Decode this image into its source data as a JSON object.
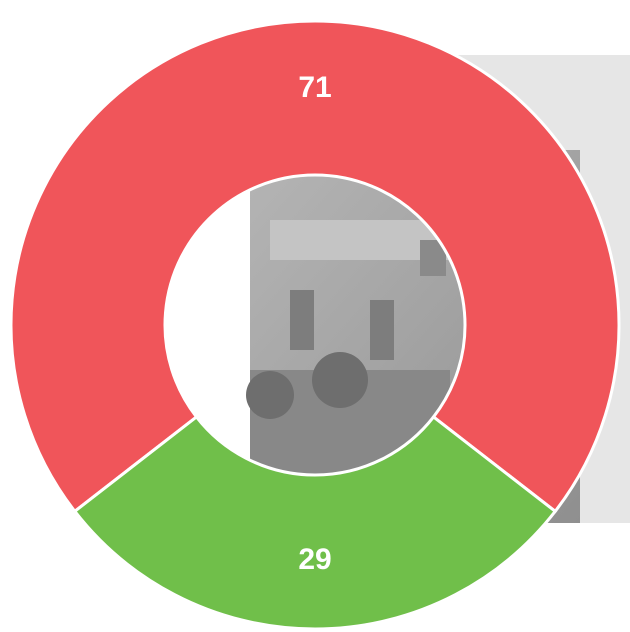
{
  "chart_data": {
    "type": "donut",
    "values": [
      71,
      29
    ],
    "value_labels": [
      "71",
      "29"
    ],
    "colors": [
      "#f0555a",
      "#70bf4a"
    ]
  }
}
